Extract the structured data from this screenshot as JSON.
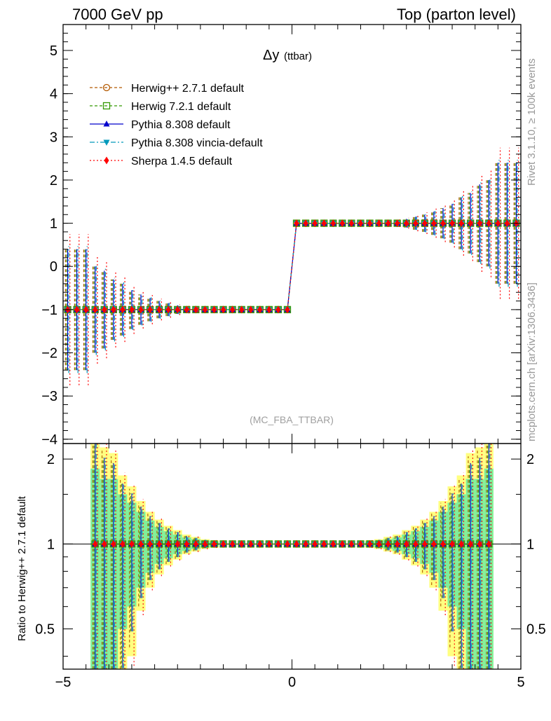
{
  "header": {
    "left": "7000 GeV pp",
    "right": "Top (parton level)"
  },
  "side": {
    "rivet": "Rivet 3.1.10, ≥ 100k events",
    "mcplots": "mcplots.cern.ch [arXiv:1306.3436]"
  },
  "colors": {
    "herwigpp": "#b35900",
    "herwig7": "#339900",
    "pythia": "#0000cc",
    "vincia": "#0099bb",
    "sherpa": "#ff0000",
    "band_yellow": "#ffff80",
    "band_green": "#80ee99"
  },
  "chart_data": [
    {
      "type": "line",
      "title_main": "Δy",
      "title_sub": "(ttbar)",
      "watermark": "(MC_FBA_TTBAR)",
      "xlim": [
        -5.0,
        5.0
      ],
      "ylim": [
        -4.1,
        5.6
      ],
      "yticks": [
        -4,
        -3,
        -2,
        -1,
        0,
        1,
        2,
        3,
        4,
        5
      ],
      "yticklabels": [
        "−4",
        "−3",
        "−2",
        "−1",
        "0",
        "1",
        "2",
        "3",
        "4",
        "5"
      ],
      "bins": {
        "start": -5.0,
        "width": 0.2,
        "count": 50
      },
      "series": [
        {
          "name": "Herwig++ 2.7.1 default",
          "marker": "open-circle",
          "style": "dashed",
          "negvalue": -1,
          "posvalue": 1
        },
        {
          "name": "Herwig 7.2.1 default",
          "marker": "open-square",
          "style": "dashed",
          "negvalue": -1,
          "posvalue": 1
        },
        {
          "name": "Pythia 8.308 default",
          "marker": "triangle-up",
          "style": "solid",
          "negvalue": -1,
          "posvalue": 1
        },
        {
          "name": "Pythia 8.308 vincia-default",
          "marker": "triangle-down",
          "style": "dashdot",
          "negvalue": -1,
          "posvalue": 1
        },
        {
          "name": "Sherpa 1.4.5 default",
          "marker": "diamond",
          "style": "dotted",
          "negvalue": -1,
          "posvalue": 1
        }
      ],
      "errors_by_abs_x": [
        {
          "absx": 4.9,
          "err": 1.4
        },
        {
          "absx": 4.7,
          "err": 1.4
        },
        {
          "absx": 4.5,
          "err": 1.4
        },
        {
          "absx": 4.3,
          "err": 1.0
        },
        {
          "absx": 4.1,
          "err": 0.9
        },
        {
          "absx": 3.9,
          "err": 0.7
        },
        {
          "absx": 3.7,
          "err": 0.6
        },
        {
          "absx": 3.5,
          "err": 0.45
        },
        {
          "absx": 3.3,
          "err": 0.35
        },
        {
          "absx": 3.1,
          "err": 0.27
        },
        {
          "absx": 2.9,
          "err": 0.2
        },
        {
          "absx": 2.7,
          "err": 0.15
        },
        {
          "absx": 2.5,
          "err": 0.1
        },
        {
          "absx": 2.3,
          "err": 0.07
        },
        {
          "absx": 2.1,
          "err": 0.05
        }
      ]
    },
    {
      "type": "line",
      "ylabel": "Ratio to Herwig++ 2.7.1 default",
      "scale": "log",
      "xlim": [
        -5.0,
        5.0
      ],
      "ylim": [
        0.36,
        2.27
      ],
      "yticks": [
        0.5,
        1,
        2
      ],
      "yticklabels": [
        "0.5",
        "1",
        "2"
      ],
      "xticks": [
        -5,
        0,
        5
      ],
      "xticklabels": [
        "−5",
        "0",
        "5"
      ],
      "ratio_value": 1.0,
      "band_halfwidth_by_abs_x": [
        {
          "absx": 4.3,
          "yellow": 1.5,
          "green": 0.85
        },
        {
          "absx": 4.1,
          "yellow": 1.2,
          "green": 0.7
        },
        {
          "absx": 3.9,
          "yellow": 1.1,
          "green": 0.7
        },
        {
          "absx": 3.7,
          "yellow": 0.75,
          "green": 0.5
        },
        {
          "absx": 3.5,
          "yellow": 0.6,
          "green": 0.4
        },
        {
          "absx": 3.3,
          "yellow": 0.42,
          "green": 0.3
        },
        {
          "absx": 3.1,
          "yellow": 0.3,
          "green": 0.21
        },
        {
          "absx": 2.9,
          "yellow": 0.22,
          "green": 0.15
        },
        {
          "absx": 2.7,
          "yellow": 0.16,
          "green": 0.11
        },
        {
          "absx": 2.5,
          "yellow": 0.12,
          "green": 0.08
        },
        {
          "absx": 2.3,
          "yellow": 0.08,
          "green": 0.055
        },
        {
          "absx": 2.1,
          "yellow": 0.06,
          "green": 0.04
        },
        {
          "absx": 1.9,
          "yellow": 0.04,
          "green": 0.03
        },
        {
          "absx": 1.7,
          "yellow": 0.03,
          "green": 0.02
        }
      ]
    }
  ]
}
